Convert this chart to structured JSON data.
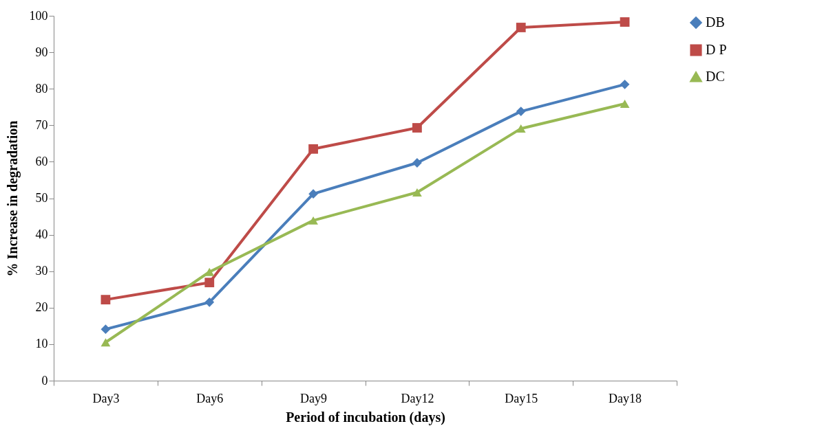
{
  "chart_data": {
    "type": "line",
    "xlabel": "Period of incubation (days)",
    "ylabel": "% Increase in degradation",
    "categories": [
      "Day3",
      "Day6",
      "Day9",
      "Day12",
      "Day15",
      "Day18"
    ],
    "series": [
      {
        "name": "DB",
        "color": "#4a7ebb",
        "marker": "diamond",
        "values": [
          14.1,
          21.5,
          51.2,
          59.7,
          73.8,
          81.2
        ]
      },
      {
        "name": "D P",
        "color": "#be4b48",
        "marker": "square",
        "values": [
          22.2,
          26.9,
          63.5,
          69.3,
          96.8,
          98.3
        ]
      },
      {
        "name": "DC",
        "color": "#98b954",
        "marker": "triangle",
        "values": [
          10.5,
          29.8,
          43.9,
          51.6,
          69.1,
          75.9
        ]
      }
    ],
    "ylim": [
      0,
      100
    ],
    "yticks": [
      0,
      10,
      20,
      30,
      40,
      50,
      60,
      70,
      80,
      90,
      100
    ],
    "grid": false,
    "legend": "right",
    "line_style": "solid"
  }
}
